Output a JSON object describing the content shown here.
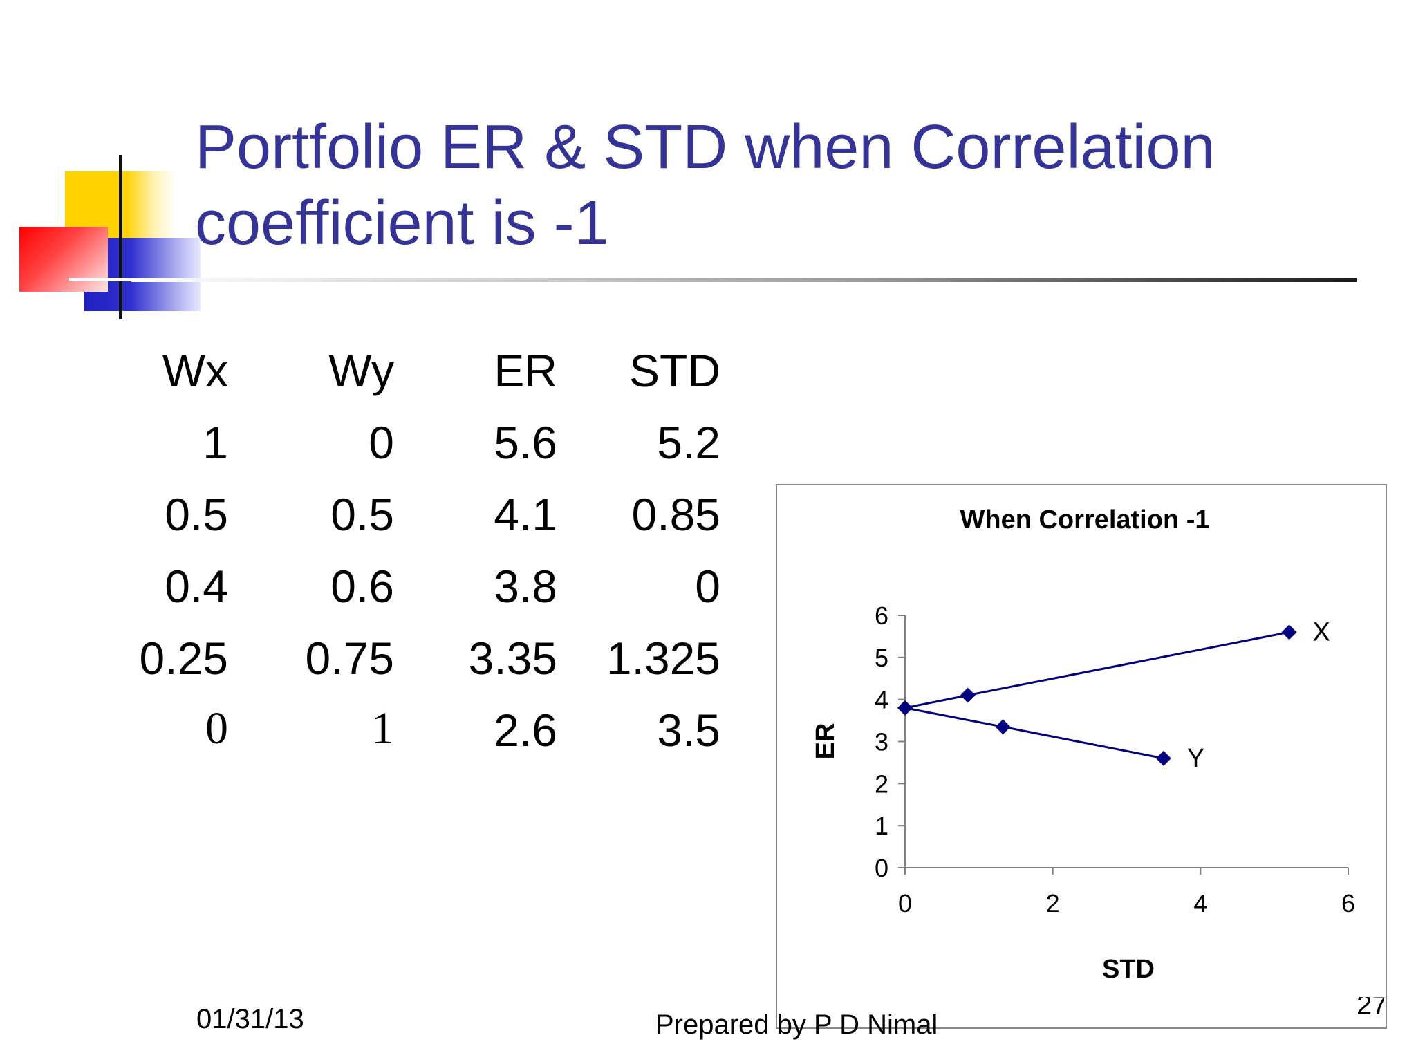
{
  "title": "Portfolio ER & STD when Correlation coefficient is -1",
  "table": {
    "headers": [
      "Wx",
      "Wy",
      "ER",
      "STD"
    ],
    "rows": [
      [
        "1",
        "0",
        "5.6",
        "5.2"
      ],
      [
        "0.5",
        "0.5",
        "4.1",
        "0.85"
      ],
      [
        "0.4",
        "0.6",
        "3.8",
        "0"
      ],
      [
        "0.25",
        "0.75",
        "3.35",
        "1.325"
      ],
      [
        "0",
        "1",
        "2.6",
        "3.5"
      ]
    ]
  },
  "chart_data": {
    "type": "scatter",
    "title": "When Correlation -1",
    "xlabel": "STD",
    "ylabel": "ER",
    "xlim": [
      0,
      6
    ],
    "ylim": [
      0,
      6
    ],
    "xticks": [
      "0",
      "2",
      "4",
      "6"
    ],
    "yticks": [
      "0",
      "1",
      "2",
      "3",
      "4",
      "5",
      "6"
    ],
    "series": [
      {
        "points": [
          [
            0,
            3.8
          ],
          [
            0.85,
            4.1
          ],
          [
            5.2,
            5.6
          ]
        ],
        "label": "X"
      },
      {
        "points": [
          [
            0,
            3.8
          ],
          [
            1.325,
            3.35
          ],
          [
            3.5,
            2.6
          ]
        ],
        "label": "Y"
      }
    ],
    "color": "#000080",
    "grid": false
  },
  "footer": {
    "date": "01/31/13",
    "author": "Prepared by P D Nimal",
    "page": "27"
  }
}
